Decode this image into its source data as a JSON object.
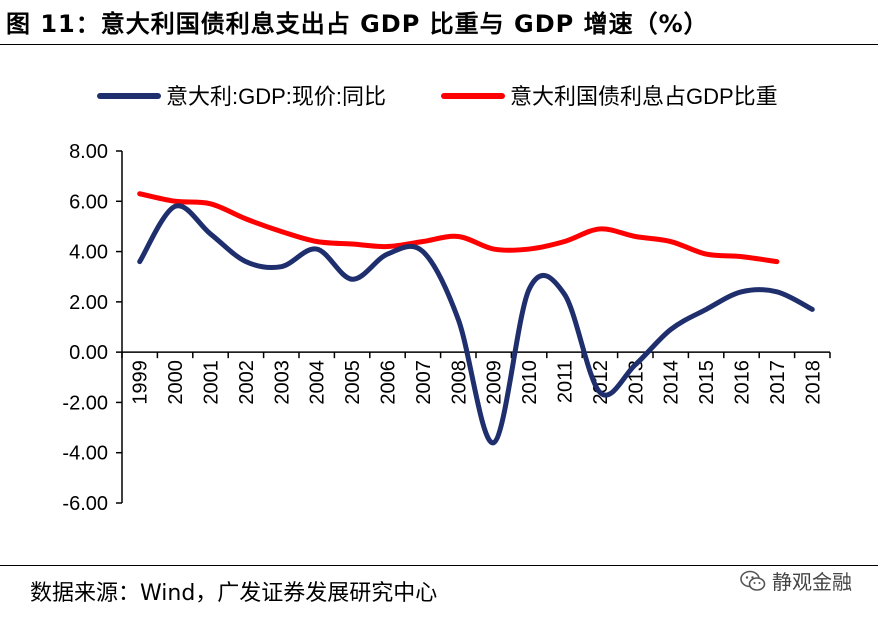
{
  "figure": {
    "title": "图 11：意大利国债利息支出占 GDP 比重与 GDP 增速（%）",
    "source": "数据来源：Wind，广发证券发展研究中心",
    "watermark": "静观金融"
  },
  "chart_data": {
    "type": "line",
    "title": "",
    "xlabel": "",
    "ylabel": "",
    "categories": [
      "1999",
      "2000",
      "2001",
      "2002",
      "2003",
      "2004",
      "2005",
      "2006",
      "2007",
      "2008",
      "2009",
      "2010",
      "2011",
      "2012",
      "2013",
      "2014",
      "2015",
      "2016",
      "2017",
      "2018"
    ],
    "ylim": [
      -6,
      8
    ],
    "yticks": [
      8,
      6,
      4,
      2,
      0,
      -2,
      -4,
      -6
    ],
    "ytick_labels": [
      "8.00",
      "6.00",
      "4.00",
      "2.00",
      "0.00",
      "-2.00",
      "-4.00",
      "-6.00"
    ],
    "series": [
      {
        "name": "意大利:GDP:现价:同比",
        "color": "#1f2f6e",
        "values": [
          3.6,
          5.8,
          4.7,
          3.6,
          3.4,
          4.1,
          2.9,
          3.9,
          4.0,
          1.3,
          -3.6,
          2.5,
          2.3,
          -1.6,
          -0.5,
          0.9,
          1.7,
          2.4,
          2.4,
          1.7
        ]
      },
      {
        "name": "意大利国债利息占GDP比重",
        "color": "#ff0000",
        "values": [
          6.3,
          6.0,
          5.9,
          5.3,
          4.8,
          4.4,
          4.3,
          4.2,
          4.4,
          4.6,
          4.1,
          4.1,
          4.4,
          4.9,
          4.6,
          4.4,
          3.9,
          3.8,
          3.6,
          null
        ]
      }
    ],
    "legend": "top"
  }
}
